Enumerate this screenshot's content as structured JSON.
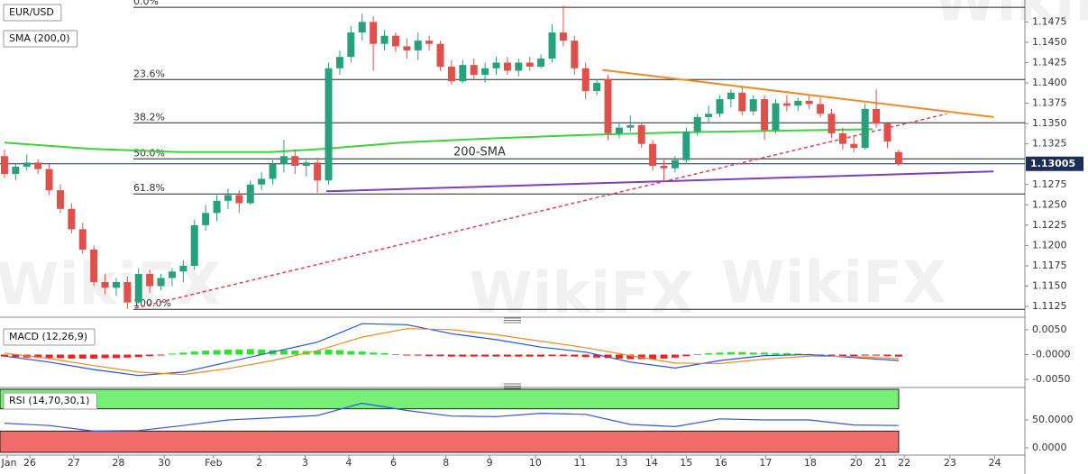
{
  "chart_data": [
    {
      "type": "candlestick",
      "title": "EUR/USD",
      "indicator_label": "SMA (200,0)",
      "watermark": "WikiFX",
      "up_color": "#26a17b",
      "down_color": "#e0504a",
      "open": [
        1.131,
        1.1288,
        1.1297,
        1.1302,
        1.1294,
        1.1268,
        1.1245,
        1.122,
        1.1195,
        1.1155,
        1.1148,
        1.1155,
        1.113,
        1.1165,
        1.115,
        1.116,
        1.1168,
        1.1175,
        1.1225,
        1.124,
        1.1255,
        1.1262,
        1.1252,
        1.1275,
        1.1282,
        1.13,
        1.131,
        1.1298,
        1.1302,
        1.128,
        1.1418,
        1.1432,
        1.1462,
        1.1475,
        1.1448,
        1.1458,
        1.1445,
        1.144,
        1.1452,
        1.1448,
        1.142,
        1.1402,
        1.1422,
        1.141,
        1.1418,
        1.1425,
        1.1415,
        1.1425,
        1.142,
        1.143,
        1.1462,
        1.1452,
        1.1418,
        1.139,
        1.1405,
        1.1338,
        1.1345,
        1.1348,
        1.1325,
        1.1298,
        1.1295,
        1.1305,
        1.134,
        1.1358,
        1.1362,
        1.138,
        1.1388,
        1.1365,
        1.138,
        1.1342,
        1.1375,
        1.1372,
        1.1378,
        1.1374,
        1.1362,
        1.1338,
        1.1325,
        1.132,
        1.1368,
        1.135,
        1.1315
      ],
      "high": [
        1.1318,
        1.13,
        1.1312,
        1.1306,
        1.13,
        1.1275,
        1.1252,
        1.1228,
        1.12,
        1.1165,
        1.116,
        1.1162,
        1.1172,
        1.117,
        1.1165,
        1.1172,
        1.1182,
        1.1232,
        1.125,
        1.1262,
        1.127,
        1.1268,
        1.128,
        1.129,
        1.1305,
        1.133,
        1.1318,
        1.1305,
        1.1308,
        1.1425,
        1.144,
        1.147,
        1.1485,
        1.1482,
        1.1465,
        1.1462,
        1.1455,
        1.1462,
        1.1458,
        1.1452,
        1.1428,
        1.1428,
        1.143,
        1.1425,
        1.1432,
        1.1432,
        1.143,
        1.1432,
        1.1435,
        1.1472,
        1.1495,
        1.1458,
        1.1425,
        1.1405,
        1.141,
        1.1352,
        1.136,
        1.135,
        1.133,
        1.1305,
        1.131,
        1.1345,
        1.1362,
        1.1372,
        1.1385,
        1.1392,
        1.1395,
        1.1385,
        1.1385,
        1.138,
        1.1385,
        1.1382,
        1.1385,
        1.1382,
        1.1368,
        1.1345,
        1.1335,
        1.1375,
        1.1392,
        1.1352,
        1.1318
      ],
      "low": [
        1.1283,
        1.128,
        1.1292,
        1.1288,
        1.1262,
        1.124,
        1.1215,
        1.119,
        1.115,
        1.114,
        1.1138,
        1.1122,
        1.1128,
        1.1142,
        1.1145,
        1.115,
        1.1155,
        1.117,
        1.1218,
        1.123,
        1.1245,
        1.124,
        1.125,
        1.1268,
        1.1275,
        1.129,
        1.1288,
        1.1285,
        1.1265,
        1.1275,
        1.141,
        1.1425,
        1.1452,
        1.1415,
        1.144,
        1.1438,
        1.143,
        1.1428,
        1.144,
        1.1415,
        1.1398,
        1.14,
        1.1405,
        1.14,
        1.141,
        1.141,
        1.1408,
        1.1415,
        1.1418,
        1.1425,
        1.1445,
        1.141,
        1.138,
        1.1385,
        1.133,
        1.1332,
        1.134,
        1.132,
        1.1292,
        1.1278,
        1.129,
        1.13,
        1.1335,
        1.135,
        1.1358,
        1.137,
        1.136,
        1.136,
        1.133,
        1.1338,
        1.1365,
        1.1365,
        1.1368,
        1.1358,
        1.1332,
        1.1318,
        1.1315,
        1.1318,
        1.1345,
        1.132,
        1.1298
      ],
      "close": [
        1.1288,
        1.1297,
        1.1302,
        1.1294,
        1.1268,
        1.1245,
        1.122,
        1.1195,
        1.1155,
        1.1148,
        1.1155,
        1.113,
        1.1165,
        1.115,
        1.116,
        1.1168,
        1.1175,
        1.1225,
        1.124,
        1.1255,
        1.1262,
        1.1252,
        1.1275,
        1.1282,
        1.13,
        1.131,
        1.1298,
        1.1302,
        1.128,
        1.1418,
        1.1432,
        1.1462,
        1.1475,
        1.1448,
        1.1458,
        1.1445,
        1.144,
        1.1452,
        1.1448,
        1.142,
        1.1402,
        1.1422,
        1.141,
        1.1418,
        1.1425,
        1.1415,
        1.1425,
        1.142,
        1.143,
        1.1462,
        1.1452,
        1.1418,
        1.139,
        1.14,
        1.1338,
        1.1345,
        1.1348,
        1.1325,
        1.1298,
        1.1295,
        1.1305,
        1.134,
        1.1358,
        1.1362,
        1.138,
        1.1388,
        1.1365,
        1.138,
        1.1342,
        1.1375,
        1.1372,
        1.1378,
        1.1374,
        1.1362,
        1.1338,
        1.1325,
        1.132,
        1.1368,
        1.135,
        1.1328,
        1.13005
      ],
      "sma": {
        "name": "200-SMA",
        "color": "#3cd33c",
        "x": [
          0,
          7.7,
          15.7,
          23.8,
          28.6,
          35.9,
          44,
          52,
          60.1,
          68.1,
          77.7
        ],
        "values": [
          1.13265,
          1.1319,
          1.1315,
          1.1315,
          1.1319,
          1.1327,
          1.1332,
          1.1336,
          1.1339,
          1.1341,
          1.1343
        ]
      },
      "trend_lines": [
        {
          "color": "#f08a24",
          "dashed": false,
          "x": [
            53.5,
            88.5
          ],
          "values": [
            1.1416,
            1.1358
          ]
        },
        {
          "color": "#7b3fbf",
          "dashed": false,
          "x": [
            28.8,
            88.5
          ],
          "values": [
            1.12667,
            1.12911
          ]
        },
        {
          "color": "#e0405a",
          "dashed": true,
          "x": [
            11.7,
            84.3
          ],
          "values": [
            1.1123,
            1.1362
          ]
        }
      ],
      "fib_levels": [
        {
          "label": "0.0%",
          "value": 1.1493
        },
        {
          "label": "23.6%",
          "value": 1.14041
        },
        {
          "label": "38.2%",
          "value": 1.13509
        },
        {
          "label": "50.0%",
          "value": 1.13066
        },
        {
          "label": "61.8%",
          "value": 1.12634
        },
        {
          "label": "100.0%",
          "value": 1.11215
        }
      ],
      "last_price": 1.13005,
      "ylim": [
        1.1114,
        1.1502
      ],
      "yticks": [
        1.1125,
        {
          "value": 1.115,
          "label": "1.1150"
        },
        1.1175,
        {
          "value": 1.12,
          "label": "1.1200"
        },
        1.1225,
        {
          "value": 1.125,
          "label": "1.1250"
        },
        1.1275,
        1.1325,
        {
          "value": 1.135,
          "label": "1.1350"
        },
        1.1375,
        {
          "value": 1.14,
          "label": "1.1400"
        },
        1.1425,
        {
          "value": 1.145,
          "label": "1.1450"
        },
        1.1475
      ],
      "xlim": [
        -0.4,
        91.3
      ],
      "xticks": [
        {
          "value": 0.24,
          "label": "Jan"
        },
        {
          "value": 2.26,
          "label": "26"
        },
        {
          "value": 6.2,
          "label": "27"
        },
        {
          "value": 10.2,
          "label": "28"
        },
        {
          "value": 14.3,
          "label": "30"
        },
        {
          "value": 18.7,
          "label": "Feb"
        },
        {
          "value": 22.8,
          "label": "2"
        },
        {
          "value": 26.9,
          "label": "3"
        },
        {
          "value": 30.8,
          "label": "4"
        },
        {
          "value": 34.8,
          "label": "6"
        },
        {
          "value": 39.5,
          "label": "8"
        },
        {
          "value": 43.4,
          "label": "9"
        },
        {
          "value": 47.5,
          "label": "10"
        },
        {
          "value": 51.5,
          "label": "11"
        },
        {
          "value": 55.2,
          "label": "13"
        },
        {
          "value": 57.9,
          "label": "14"
        },
        {
          "value": 61,
          "label": "15"
        },
        {
          "value": 64.1,
          "label": "16"
        },
        {
          "value": 68.1,
          "label": "17"
        },
        {
          "value": 72.1,
          "label": "18"
        },
        {
          "value": 76.2,
          "label": "20"
        },
        {
          "value": 78.4,
          "label": "21"
        },
        {
          "value": 80.5,
          "label": "22"
        },
        {
          "value": 84.6,
          "label": "23"
        },
        {
          "value": 88.6,
          "label": "24"
        }
      ]
    },
    {
      "type": "macd",
      "title": "MACD (12,26,9)",
      "histogram": [
        -0.0004,
        -0.0005,
        -0.0006,
        -0.0006,
        -0.0007,
        -0.0007,
        -0.0008,
        -0.0008,
        -0.0008,
        -0.0007,
        -0.0007,
        -0.0006,
        -0.0005,
        -0.0003,
        -0.0001,
        0.0002,
        0.0004,
        0.0006,
        0.0008,
        0.0009,
        0.001,
        0.001,
        0.0011,
        0.001,
        0.0009,
        0.0009,
        0.0008,
        0.0007,
        0.0008,
        0.001,
        0.0009,
        0.0007,
        0.0006,
        0.0004,
        0.0003,
        0.0001,
        -0.0001,
        -0.0002,
        -0.0003,
        -0.0003,
        -0.0004,
        -0.0004,
        -0.0004,
        -0.0004,
        -0.0004,
        -0.0004,
        -0.0004,
        -0.0004,
        -0.0004,
        -0.0003,
        -0.0003,
        -0.0004,
        -0.0005,
        -0.0006,
        -0.0007,
        -0.0008,
        -0.0009,
        -0.0009,
        -0.0009,
        -0.0008,
        -0.0006,
        -0.0003,
        0.0001,
        0.0003,
        0.0004,
        0.0005,
        0.0005,
        0.0004,
        0.0004,
        0.0003,
        0.0003,
        0.0002,
        0.0001,
        -0.0001,
        -0.0002,
        -0.0003,
        -0.0003,
        -0.0002,
        -0.0002,
        -0.0003,
        -0.0004
      ],
      "positive_color": "#33dd33",
      "negative_color": "#ee2222",
      "series": [
        {
          "color": "#2255dd",
          "x": [
            0,
            4,
            8,
            12,
            16,
            20,
            24,
            28,
            32,
            36,
            40,
            44,
            48,
            52,
            56,
            60,
            64,
            68,
            72,
            76,
            80
          ],
          "values": [
            -0.0003,
            -0.0015,
            -0.003,
            -0.0042,
            -0.0035,
            -0.0015,
            0.0005,
            0.0025,
            0.0062,
            0.006,
            0.0042,
            0.003,
            0.0015,
            0.0005,
            -0.0015,
            -0.0027,
            -0.0012,
            -0.0002,
            0.0,
            -0.0006,
            -0.0012
          ]
        },
        {
          "color": "#f08a24",
          "x": [
            0,
            4,
            8,
            12,
            16,
            20,
            24,
            28,
            32,
            36,
            40,
            44,
            48,
            52,
            56,
            60,
            64,
            68,
            72,
            76,
            80
          ],
          "values": [
            0.0003,
            -0.0008,
            -0.0022,
            -0.0035,
            -0.004,
            -0.0028,
            -0.0012,
            0.0008,
            0.0035,
            0.0052,
            0.005,
            0.004,
            0.0027,
            0.0014,
            -0.0002,
            -0.0017,
            -0.0018,
            -0.0009,
            -0.0003,
            -0.0004,
            -0.0008
          ]
        }
      ],
      "ylim": [
        -0.0066,
        0.0066
      ],
      "yticks": [
        {
          "value": 0.005,
          "label": "0.0050"
        },
        {
          "value": 0,
          "label": "-0.0000"
        },
        {
          "value": -0.005,
          "label": "-0.0050"
        }
      ]
    },
    {
      "type": "line",
      "title": "RSI (14,70,30,1)",
      "overbought": 70,
      "oversold": 30,
      "overbought_color": "#77ee77",
      "oversold_color": "#f26b6b",
      "series": [
        {
          "color": "#3355dd",
          "x": [
            0,
            4,
            8,
            12,
            16,
            20,
            24,
            28,
            32,
            36,
            40,
            44,
            48,
            52,
            56,
            60,
            64,
            68,
            72,
            76,
            80
          ],
          "values": [
            44,
            40,
            30,
            31,
            40,
            50,
            54,
            58,
            80,
            67,
            57,
            56,
            62,
            60,
            42,
            38,
            52,
            50,
            50,
            41,
            40
          ]
        }
      ],
      "ylim": [
        -13,
        105
      ],
      "yticks": [
        {
          "value": 50,
          "label": "50.0000"
        },
        {
          "value": 0,
          "label": "0.0000"
        }
      ]
    }
  ]
}
